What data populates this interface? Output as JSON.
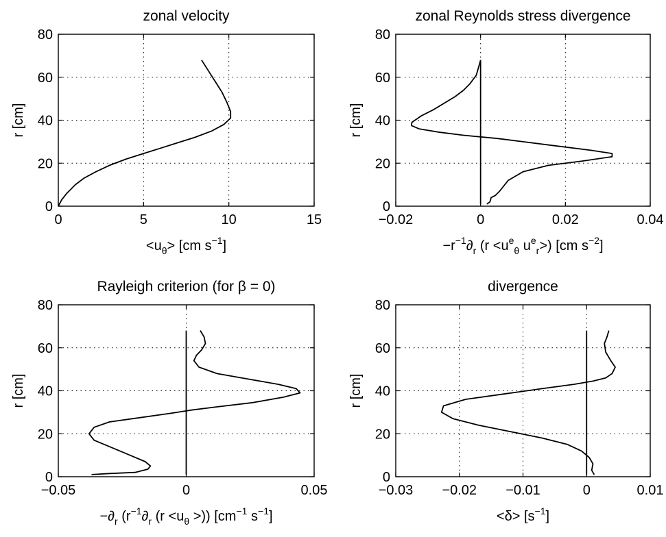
{
  "chart_data": [
    {
      "type": "line",
      "title": "zonal velocity",
      "xlabel": {
        "main": "<u",
        "sub": "θ",
        "rest": "> [cm s",
        "sup": "−1",
        "end": "]"
      },
      "ylabel": "r [cm]",
      "xlim": [
        0,
        15
      ],
      "ylim": [
        0,
        80
      ],
      "xticks": [
        0,
        5,
        10,
        15
      ],
      "xtick_labels": [
        "0",
        "5",
        "10",
        "15"
      ],
      "yticks": [
        0,
        20,
        40,
        60,
        80
      ],
      "ytick_labels": [
        "0",
        "20",
        "40",
        "60",
        "80"
      ],
      "grid": true,
      "zero_line": false,
      "series": [
        {
          "x": [
            0,
            0.2,
            0.5,
            1.0,
            1.5,
            2.2,
            3.0,
            4.0,
            5.0,
            6.0,
            7.0,
            8.0,
            9.0,
            9.7,
            10.1,
            10.1,
            9.9,
            9.6,
            9.2,
            8.8,
            8.4
          ],
          "y": [
            0,
            3,
            6,
            10,
            13,
            16,
            19,
            22,
            24.5,
            27,
            29.5,
            32,
            35,
            38,
            41,
            44,
            48,
            53,
            58,
            63,
            68
          ]
        }
      ]
    },
    {
      "type": "line",
      "title": "zonal Reynolds stress divergence",
      "xlabel": {
        "pre": "−r",
        "pre_sup": "−1",
        "mid": "∂",
        "mid_sub": "r",
        "a": " (r <u",
        "a_sup": "e",
        "a_sub": "θ",
        "b": " u",
        "b_sup": "e",
        "b_sub": "r",
        "c": ">) [cm s",
        "c_sup": "−2",
        "end": "]"
      },
      "ylabel": "r [cm]",
      "xlim": [
        -0.02,
        0.04
      ],
      "ylim": [
        0,
        80
      ],
      "xticks": [
        -0.02,
        0,
        0.02,
        0.04
      ],
      "xtick_labels": [
        "−0.02",
        "0",
        "0.02",
        "0.04"
      ],
      "yticks": [
        0,
        20,
        40,
        60,
        80
      ],
      "ytick_labels": [
        "0",
        "20",
        "40",
        "60",
        "80"
      ],
      "grid": true,
      "zero_line": true,
      "series": [
        {
          "x": [
            0.0015,
            0.0022,
            0.0025,
            0.0035,
            0.0045,
            0.0065,
            0.01,
            0.016,
            0.024,
            0.031,
            0.031,
            0.026,
            0.018,
            0.01,
            0.004,
            -0.004,
            -0.01,
            -0.0145,
            -0.0163,
            -0.0162,
            -0.014,
            -0.011,
            -0.0085,
            -0.006,
            -0.004,
            -0.0025,
            -0.001,
            0.0
          ],
          "y": [
            1,
            2,
            4,
            5,
            7,
            12,
            16,
            19,
            21,
            23,
            24.5,
            26,
            28,
            30,
            31.5,
            33,
            34.5,
            36,
            37.5,
            39,
            42,
            45,
            48,
            51,
            54,
            57,
            61,
            68
          ]
        }
      ]
    },
    {
      "type": "line",
      "title": "Rayleigh criterion (for β = 0)",
      "xlabel": {
        "pre": "−∂",
        "pre_sub": "r",
        "a": " (r",
        "a_sup": "−1",
        "b": "∂",
        "b_sub": "r",
        "c": " (r <u",
        "c_sub": "θ",
        "d": " >)) [cm",
        "d_sup": "−1",
        "e": " s",
        "e_sup": "−1",
        "end": "]"
      },
      "ylabel": "r [cm]",
      "xlim": [
        -0.05,
        0.05
      ],
      "ylim": [
        0,
        80
      ],
      "xticks": [
        -0.05,
        0,
        0.05
      ],
      "xtick_labels": [
        "−0.05",
        "0",
        "0.05"
      ],
      "yticks": [
        0,
        20,
        40,
        60,
        80
      ],
      "ytick_labels": [
        "0",
        "20",
        "40",
        "60",
        "80"
      ],
      "grid": true,
      "zero_line": true,
      "series": [
        {
          "x": [
            -0.037,
            -0.03,
            -0.02,
            -0.015,
            -0.014,
            -0.016,
            -0.022,
            -0.03,
            -0.036,
            -0.038,
            -0.036,
            -0.03,
            -0.018,
            -0.006,
            0.002,
            0.012,
            0.026,
            0.038,
            0.0445,
            0.043,
            0.036,
            0.024,
            0.012,
            0.005,
            0.003,
            0.004,
            0.006,
            0.0075,
            0.007,
            0.0055
          ],
          "y": [
            1,
            1.5,
            2,
            3.5,
            5,
            7,
            10,
            14,
            17,
            20,
            23,
            25.5,
            27.5,
            29.5,
            31,
            32.5,
            34.5,
            37,
            39,
            41,
            43,
            45.5,
            48,
            51,
            54,
            56.5,
            59,
            62,
            65,
            68
          ]
        }
      ]
    },
    {
      "type": "line",
      "title": "divergence",
      "xlabel": {
        "main": "<δ> [s",
        "sup": "−1",
        "end": "]"
      },
      "ylabel": "r [cm]",
      "xlim": [
        -0.03,
        0.01
      ],
      "ylim": [
        0,
        80
      ],
      "xticks": [
        -0.03,
        -0.02,
        -0.01,
        0,
        0.01
      ],
      "xtick_labels": [
        "−0.03",
        "−0.02",
        "−0.01",
        "0",
        "0.01"
      ],
      "yticks": [
        0,
        20,
        40,
        60,
        80
      ],
      "ytick_labels": [
        "0",
        "20",
        "40",
        "60",
        "80"
      ],
      "grid": true,
      "zero_line": true,
      "series": [
        {
          "x": [
            0.0012,
            0.0008,
            0.001,
            0.0004,
            -0.0008,
            -0.003,
            -0.007,
            -0.012,
            -0.017,
            -0.021,
            -0.0228,
            -0.0225,
            -0.019,
            -0.013,
            -0.007,
            -0.002,
            0.001,
            0.003,
            0.004,
            0.0045,
            0.0038,
            0.003,
            0.0028,
            0.0032,
            0.0035
          ],
          "y": [
            1,
            3,
            6,
            9,
            12,
            15,
            18,
            21,
            24,
            27,
            30,
            33,
            36,
            38.5,
            41,
            43,
            44.5,
            46,
            48,
            51,
            54,
            58,
            62,
            65,
            68
          ]
        }
      ]
    }
  ]
}
